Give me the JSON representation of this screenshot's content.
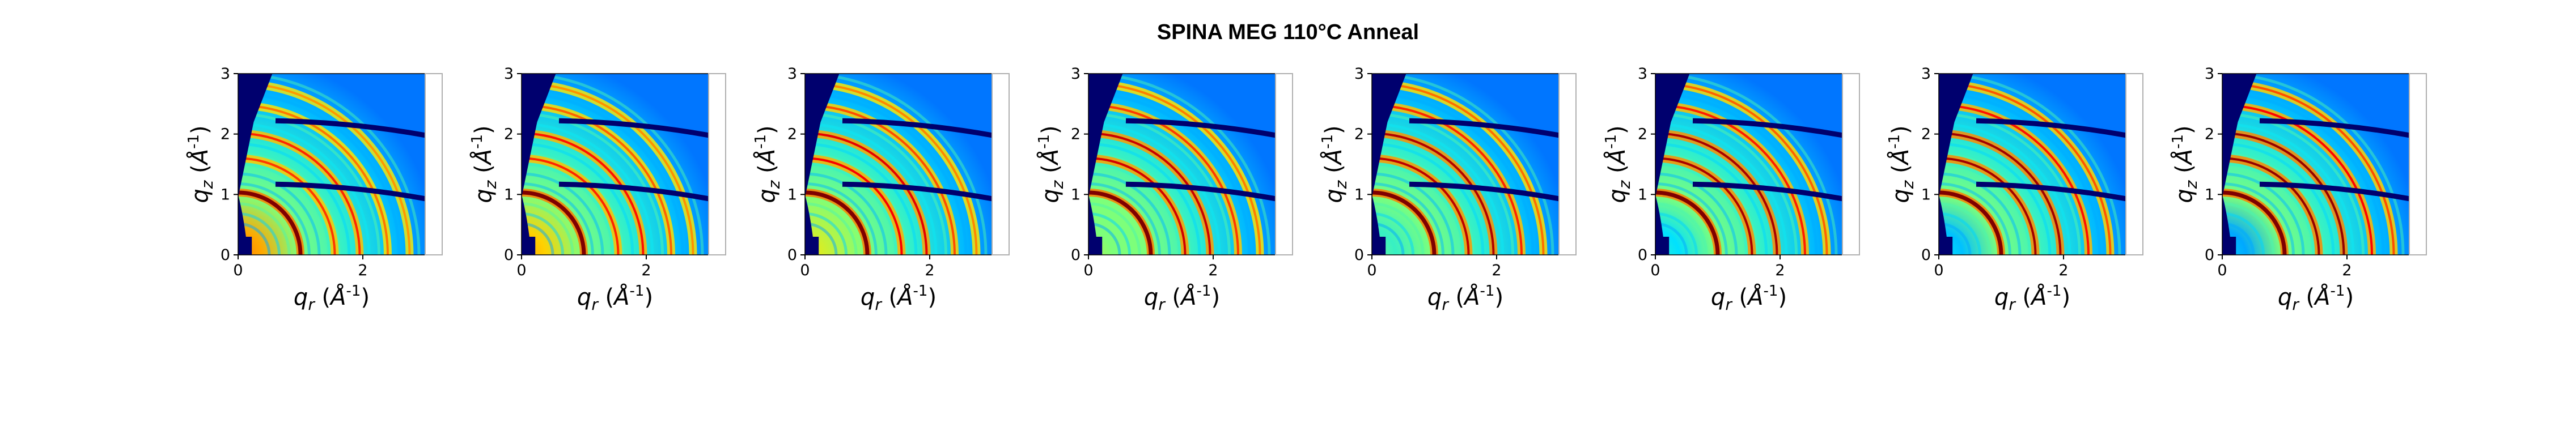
{
  "figure": {
    "title": "SPINA MEG 110°C Anneal"
  },
  "colors": {
    "cmap": [
      "#00007f",
      "#0000ff",
      "#0080ff",
      "#00e5ff",
      "#7dff7a",
      "#ffe600",
      "#ff7f00",
      "#ff0000",
      "#7f0000"
    ],
    "mask": "#00006e",
    "frame": "#b0b0b0"
  },
  "chart_data": [
    {
      "type": "heatmap",
      "title": "",
      "xlabel": "q_r (Å^-1)",
      "ylabel": "q_z (Å^-1)",
      "xlim": [
        0,
        3
      ],
      "ylim": [
        0,
        3
      ],
      "xticks": [
        0,
        2
      ],
      "yticks": [
        0,
        1,
        2,
        3
      ],
      "rings_q": [
        1.0,
        1.55,
        1.95,
        2.4,
        2.75
      ],
      "ring_strength": [
        1.0,
        0.55,
        0.6,
        0.4,
        0.3
      ],
      "low_q_intensity": 0.75
    },
    {
      "type": "heatmap",
      "title": "",
      "xlabel": "q_r (Å^-1)",
      "ylabel": "q_z (Å^-1)",
      "xlim": [
        0,
        3
      ],
      "ylim": [
        0,
        3
      ],
      "xticks": [
        0,
        2
      ],
      "yticks": [
        0,
        1,
        2,
        3
      ],
      "rings_q": [
        1.0,
        1.55,
        1.95,
        2.4,
        2.75
      ],
      "ring_strength": [
        1.0,
        0.6,
        0.65,
        0.45,
        0.32
      ],
      "low_q_intensity": 0.7
    },
    {
      "type": "heatmap",
      "title": "",
      "xlabel": "q_r (Å^-1)",
      "ylabel": "q_z (Å^-1)",
      "xlim": [
        0,
        3
      ],
      "ylim": [
        0,
        3
      ],
      "xticks": [
        0,
        2
      ],
      "yticks": [
        0,
        1,
        2,
        3
      ],
      "rings_q": [
        1.0,
        1.55,
        1.95,
        2.4,
        2.75
      ],
      "ring_strength": [
        1.0,
        0.7,
        0.75,
        0.5,
        0.35
      ],
      "low_q_intensity": 0.62
    },
    {
      "type": "heatmap",
      "title": "",
      "xlabel": "q_r (Å^-1)",
      "ylabel": "q_z (Å^-1)",
      "xlim": [
        0,
        3
      ],
      "ylim": [
        0,
        3
      ],
      "xticks": [
        0,
        2
      ],
      "yticks": [
        0,
        1,
        2,
        3
      ],
      "rings_q": [
        1.0,
        1.55,
        1.95,
        2.4,
        2.75
      ],
      "ring_strength": [
        1.0,
        0.8,
        0.82,
        0.55,
        0.38
      ],
      "low_q_intensity": 0.55
    },
    {
      "type": "heatmap",
      "title": "",
      "xlabel": "q_r (Å^-1)",
      "ylabel": "q_z (Å^-1)",
      "xlim": [
        0,
        3
      ],
      "ylim": [
        0,
        3
      ],
      "xticks": [
        0,
        2
      ],
      "yticks": [
        0,
        1,
        2,
        3
      ],
      "rings_q": [
        1.0,
        1.55,
        1.95,
        2.4,
        2.75
      ],
      "ring_strength": [
        1.0,
        0.85,
        0.88,
        0.6,
        0.42
      ],
      "low_q_intensity": 0.48
    },
    {
      "type": "heatmap",
      "title": "",
      "xlabel": "q_r (Å^-1)",
      "ylabel": "q_z (Å^-1)",
      "xlim": [
        0,
        3
      ],
      "ylim": [
        0,
        3
      ],
      "xticks": [
        0,
        2
      ],
      "yticks": [
        0,
        1,
        2,
        3
      ],
      "rings_q": [
        1.0,
        1.55,
        1.95,
        2.4,
        2.75
      ],
      "ring_strength": [
        1.0,
        0.9,
        0.9,
        0.62,
        0.45
      ],
      "low_q_intensity": 0.42
    },
    {
      "type": "heatmap",
      "title": "",
      "xlabel": "q_r (Å^-1)",
      "ylabel": "q_z (Å^-1)",
      "xlim": [
        0,
        3
      ],
      "ylim": [
        0,
        3
      ],
      "xticks": [
        0,
        2
      ],
      "yticks": [
        0,
        1,
        2,
        3
      ],
      "rings_q": [
        1.0,
        1.55,
        1.95,
        2.4,
        2.75
      ],
      "ring_strength": [
        1.0,
        0.92,
        0.92,
        0.65,
        0.48
      ],
      "low_q_intensity": 0.38
    },
    {
      "type": "heatmap",
      "title": "",
      "xlabel": "q_r (Å^-1)",
      "ylabel": "q_z (Å^-1)",
      "xlim": [
        0,
        3
      ],
      "ylim": [
        0,
        3
      ],
      "xticks": [
        0,
        2
      ],
      "yticks": [
        0,
        1,
        2,
        3
      ],
      "rings_q": [
        1.0,
        1.55,
        1.95,
        2.4,
        2.75
      ],
      "ring_strength": [
        1.0,
        0.95,
        0.95,
        0.68,
        0.5
      ],
      "low_q_intensity": 0.35
    }
  ]
}
